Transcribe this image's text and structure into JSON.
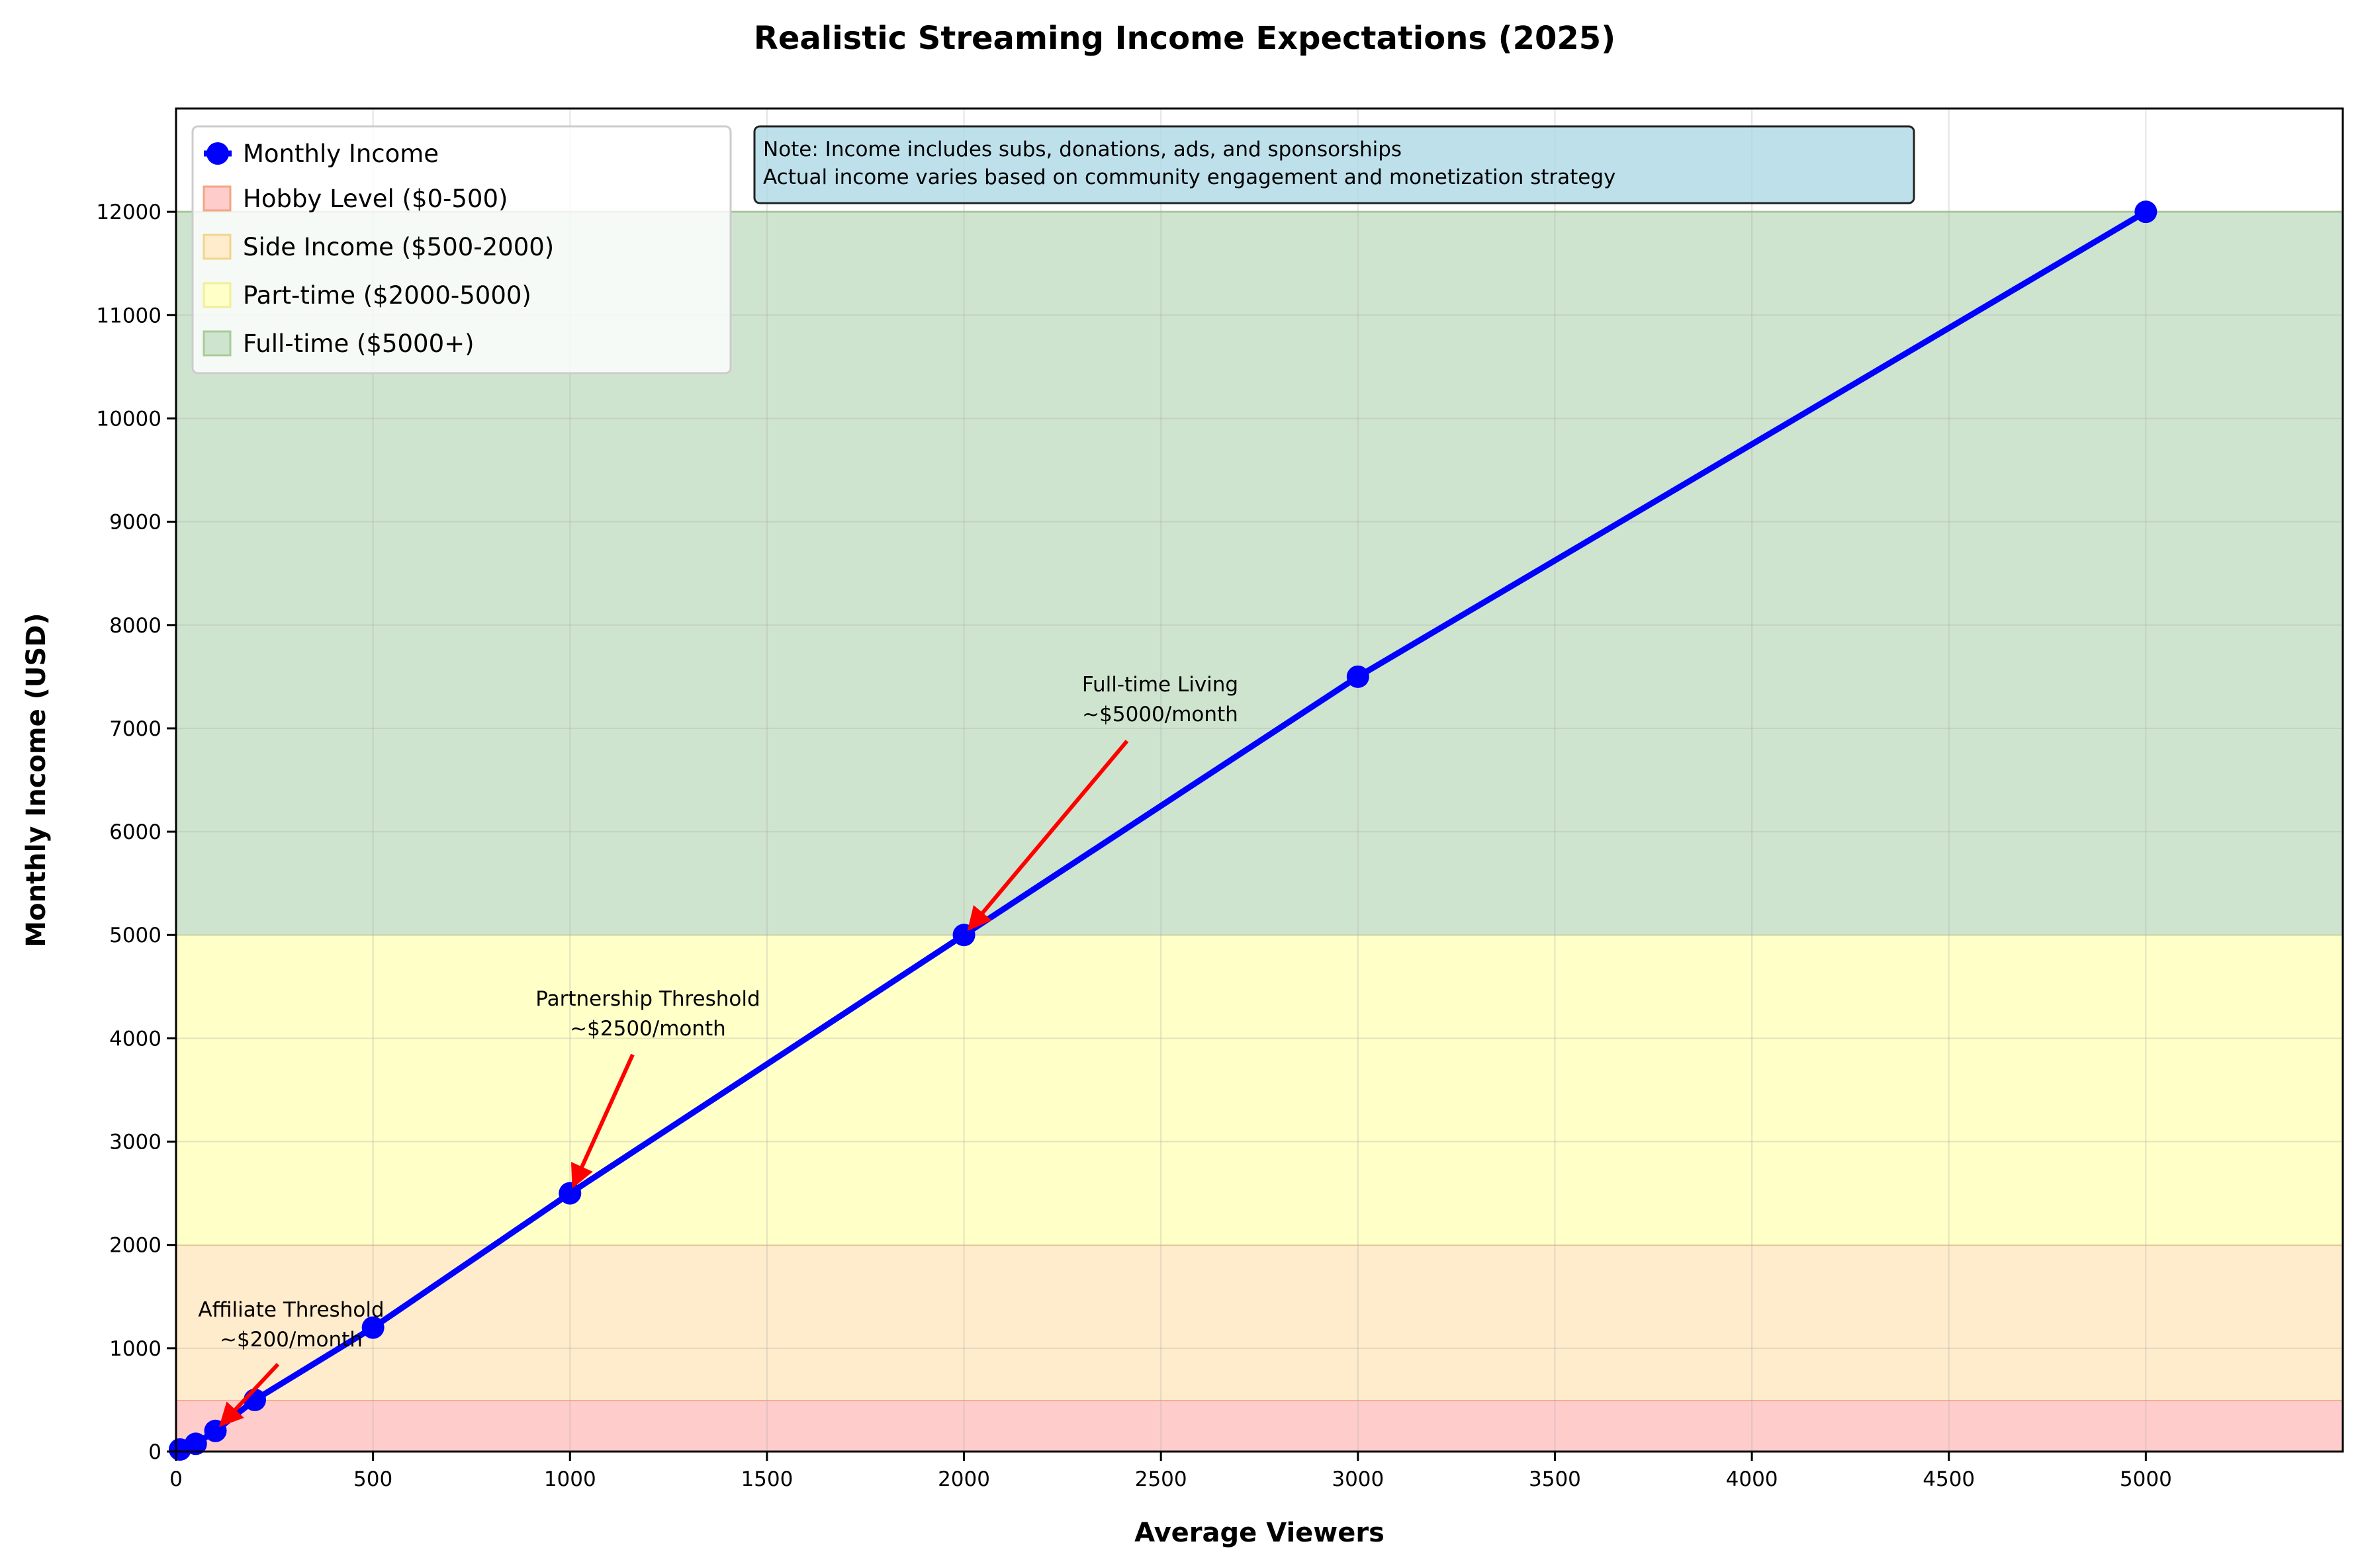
{
  "chart_data": {
    "type": "line",
    "title": "Realistic Streaming Income Expectations (2025)",
    "xlabel": "Average Viewers",
    "ylabel": "Monthly Income (USD)",
    "xlim": [
      0,
      5500
    ],
    "ylim": [
      0,
      13000
    ],
    "xticks": [
      0,
      500,
      1000,
      1500,
      2000,
      2500,
      3000,
      3500,
      4000,
      4500,
      5000
    ],
    "yticks": [
      0,
      1000,
      2000,
      3000,
      4000,
      5000,
      6000,
      7000,
      8000,
      9000,
      10000,
      11000,
      12000
    ],
    "grid": true,
    "series": [
      {
        "name": "Monthly Income",
        "color": "#0000ff",
        "x": [
          10,
          50,
          100,
          200,
          500,
          1000,
          2000,
          3000,
          5000
        ],
        "y": [
          20,
          75,
          200,
          500,
          1200,
          2500,
          5000,
          7500,
          12000
        ]
      }
    ],
    "bands": [
      {
        "name": "Hobby Level ($0-500)",
        "from": 0,
        "to": 500,
        "color": "#ffcccc",
        "edge": "#f4a582"
      },
      {
        "name": "Side Income ($500-2000)",
        "from": 500,
        "to": 2000,
        "color": "#ffeccc",
        "edge": "#f2d48a"
      },
      {
        "name": "Part-time ($2000-5000)",
        "from": 2000,
        "to": 5000,
        "color": "#ffffc8",
        "edge": "#f2ee99"
      },
      {
        "name": "Full-time ($5000+)",
        "from": 5000,
        "to": 12000,
        "color": "#cfe4cf",
        "edge": "#a8cc98"
      }
    ],
    "annotations": [
      {
        "lines": [
          "Affiliate Threshold",
          "~$200/month"
        ],
        "point": [
          100,
          200
        ]
      },
      {
        "lines": [
          "Partnership Threshold",
          "~$2500/month"
        ],
        "point": [
          1000,
          2500
        ]
      },
      {
        "lines": [
          "Full-time Living",
          "~$5000/month"
        ],
        "point": [
          2000,
          5000
        ]
      }
    ],
    "note": [
      "Note: Income includes subs, donations, ads, and sponsorships",
      "Actual income varies based on community engagement and monetization strategy"
    ],
    "legend_position": "top-left"
  }
}
